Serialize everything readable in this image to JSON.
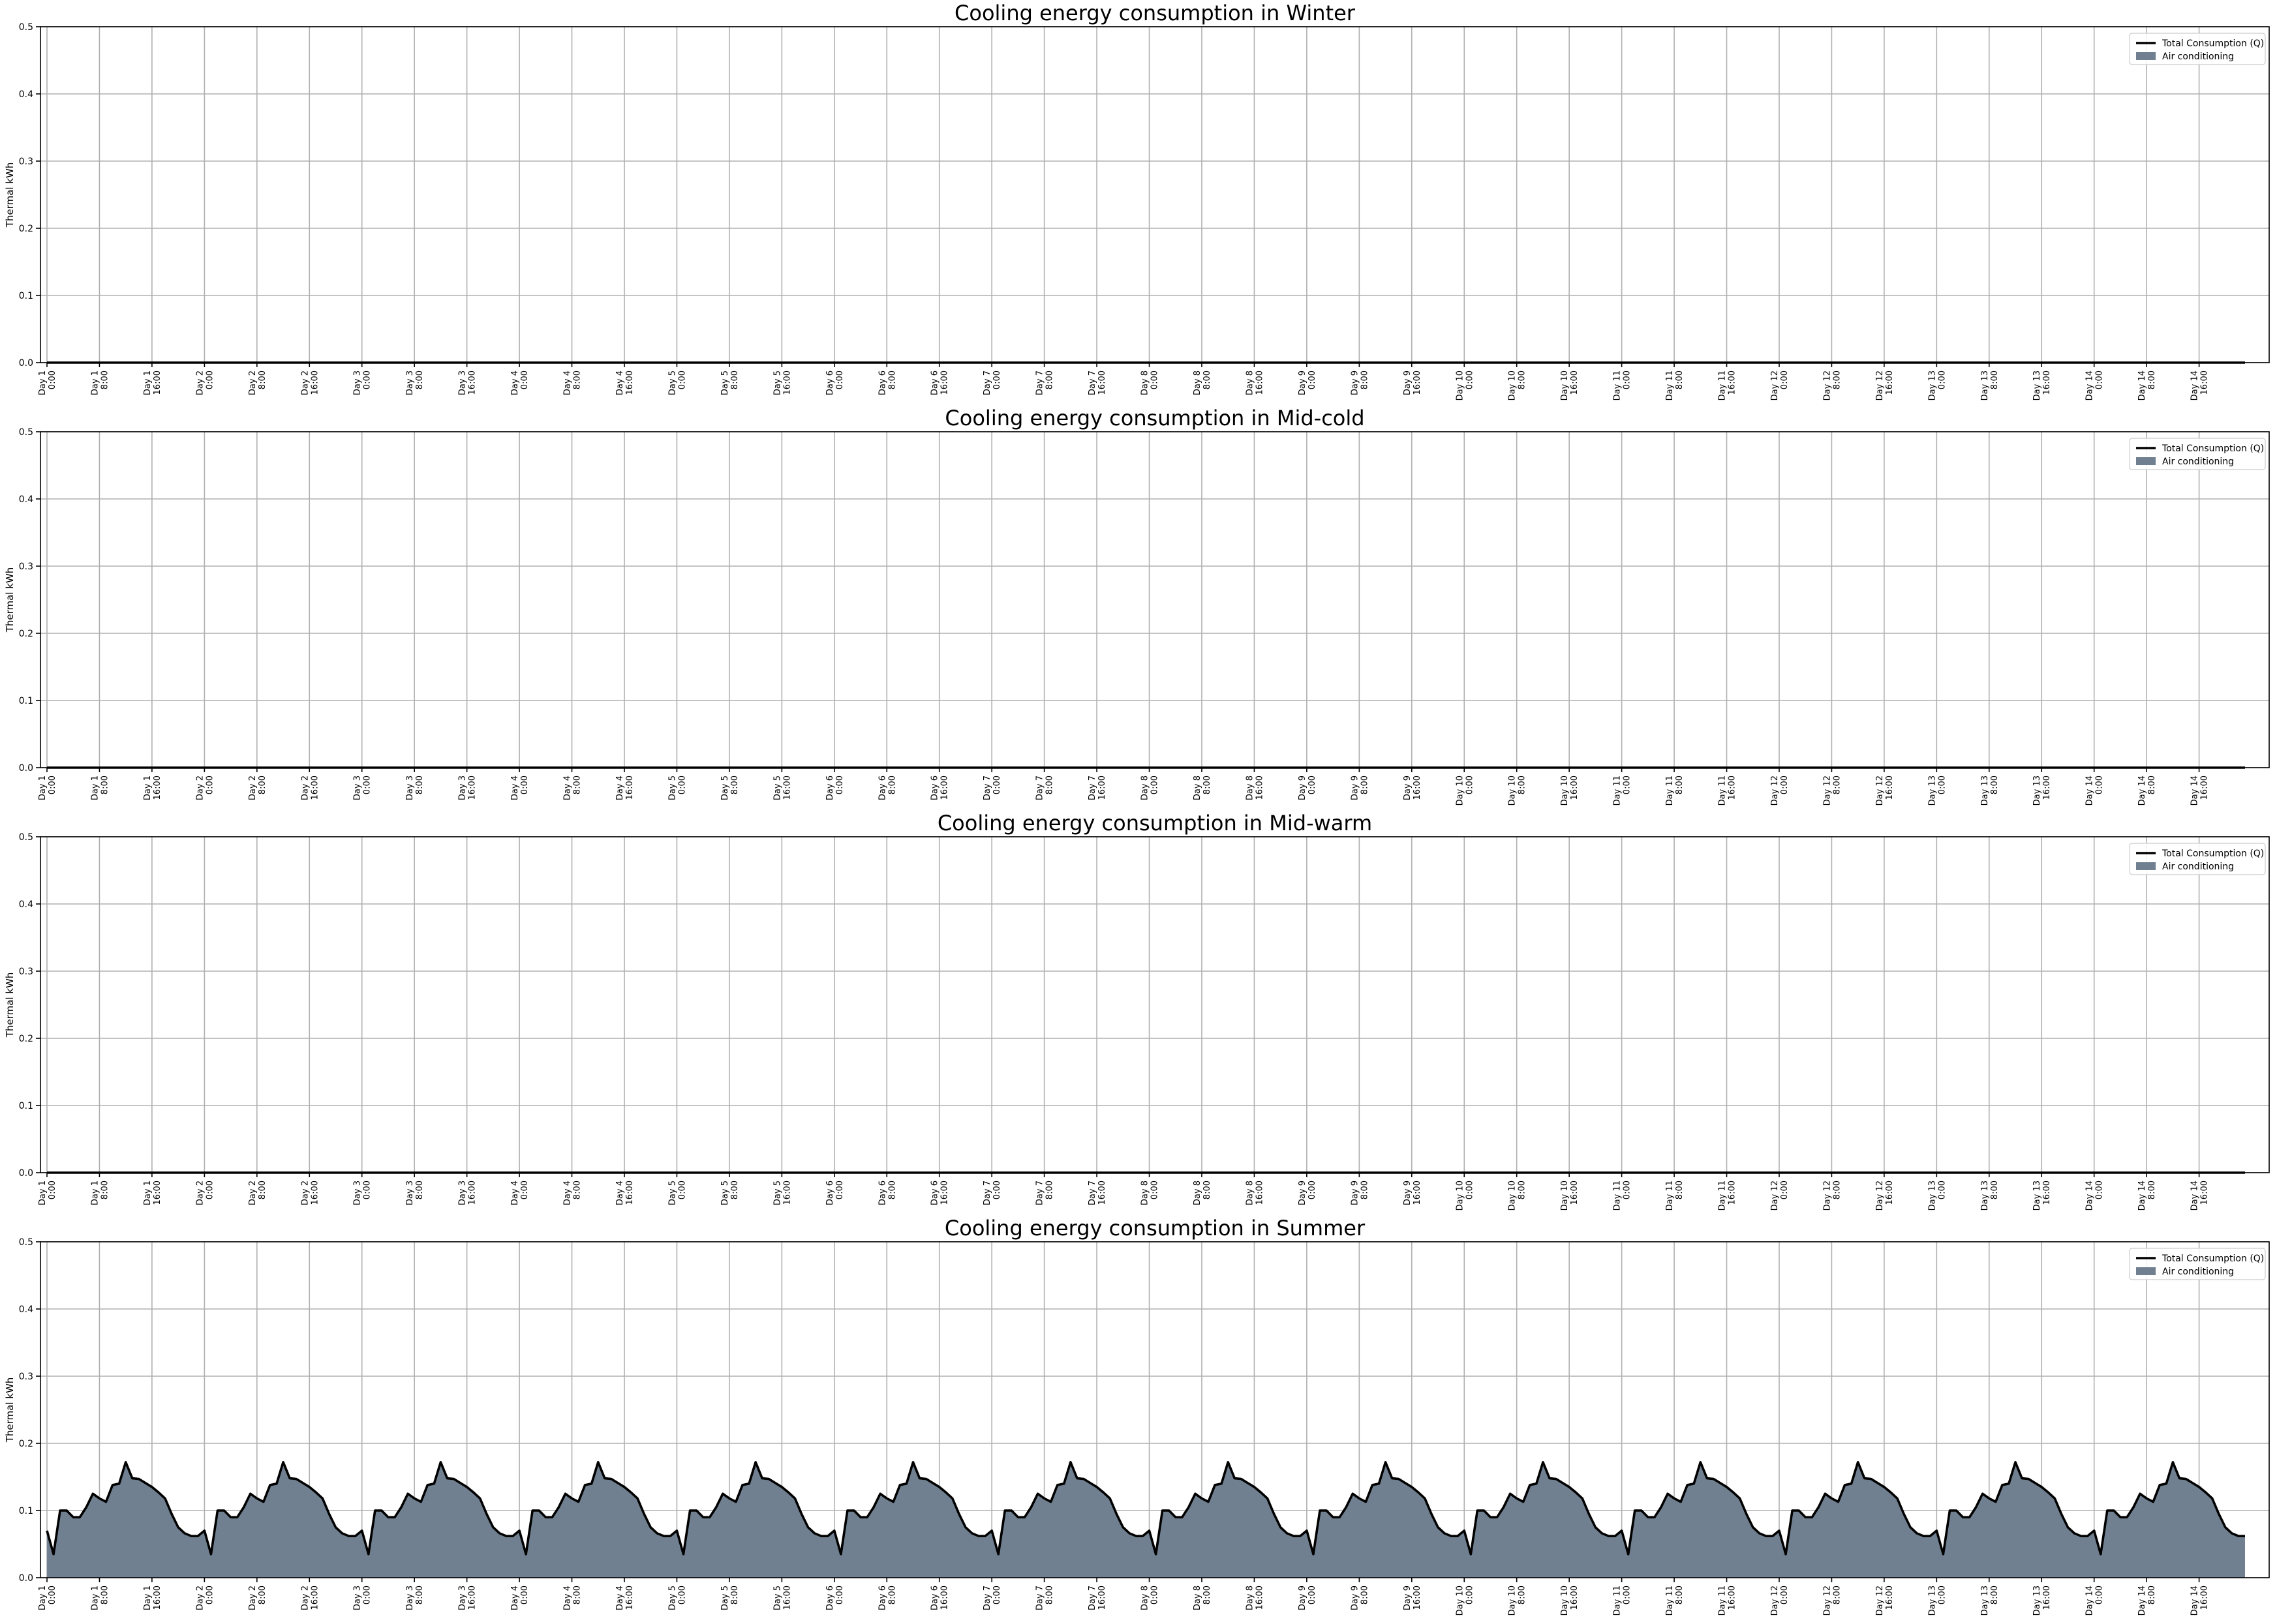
{
  "chart_data": [
    {
      "type": "area",
      "title": "Cooling energy consumption in Winter",
      "ylabel": "Thermal kWh",
      "xlabel": "",
      "ylim": [
        0,
        0.5
      ],
      "yticks": [
        "0.0",
        "0.1",
        "0.2",
        "0.3",
        "0.4",
        "0.5"
      ],
      "grid": true,
      "legend_position": "top-right",
      "series": [
        {
          "name": "Total Consumption (Q)",
          "kind": "line",
          "color": "#000000",
          "profile": "zero"
        },
        {
          "name": "Air conditioning",
          "kind": "area",
          "color": "#708090",
          "profile": "zero"
        }
      ]
    },
    {
      "type": "area",
      "title": "Cooling energy consumption in Mid-cold",
      "ylabel": "Thermal kWh",
      "xlabel": "",
      "ylim": [
        0,
        0.5
      ],
      "yticks": [
        "0.0",
        "0.1",
        "0.2",
        "0.3",
        "0.4",
        "0.5"
      ],
      "grid": true,
      "legend_position": "top-right",
      "series": [
        {
          "name": "Total Consumption (Q)",
          "kind": "line",
          "color": "#000000",
          "profile": "zero"
        },
        {
          "name": "Air conditioning",
          "kind": "area",
          "color": "#708090",
          "profile": "zero"
        }
      ]
    },
    {
      "type": "area",
      "title": "Cooling energy consumption in Mid-warm",
      "ylabel": "Thermal kWh",
      "xlabel": "",
      "ylim": [
        0,
        0.5
      ],
      "yticks": [
        "0.0",
        "0.1",
        "0.2",
        "0.3",
        "0.4",
        "0.5"
      ],
      "grid": true,
      "legend_position": "top-right",
      "series": [
        {
          "name": "Total Consumption (Q)",
          "kind": "line",
          "color": "#000000",
          "profile": "zero"
        },
        {
          "name": "Air conditioning",
          "kind": "area",
          "color": "#708090",
          "profile": "zero"
        }
      ]
    },
    {
      "type": "area",
      "title": "Cooling energy consumption in Summer",
      "ylabel": "Thermal kWh",
      "xlabel": "",
      "ylim": [
        0,
        0.5
      ],
      "yticks": [
        "0.0",
        "0.1",
        "0.2",
        "0.3",
        "0.4",
        "0.5"
      ],
      "grid": true,
      "legend_position": "top-right",
      "series": [
        {
          "name": "Total Consumption (Q)",
          "kind": "line",
          "color": "#000000",
          "profile": "daily"
        },
        {
          "name": "Air conditioning",
          "kind": "area",
          "color": "#708090",
          "profile": "daily"
        }
      ]
    }
  ],
  "x_tick_labels": [
    [
      "Day 1",
      "0:00"
    ],
    [
      "Day 1",
      "8:00"
    ],
    [
      "Day 1",
      "16:00"
    ],
    [
      "Day 2",
      "0:00"
    ],
    [
      "Day 2",
      "8:00"
    ],
    [
      "Day 2",
      "16:00"
    ],
    [
      "Day 3",
      "0:00"
    ],
    [
      "Day 3",
      "8:00"
    ],
    [
      "Day 3",
      "16:00"
    ],
    [
      "Day 4",
      "0:00"
    ],
    [
      "Day 4",
      "8:00"
    ],
    [
      "Day 4",
      "16:00"
    ],
    [
      "Day 5",
      "0:00"
    ],
    [
      "Day 5",
      "8:00"
    ],
    [
      "Day 5",
      "16:00"
    ],
    [
      "Day 6",
      "0:00"
    ],
    [
      "Day 6",
      "8:00"
    ],
    [
      "Day 6",
      "16:00"
    ],
    [
      "Day 7",
      "0:00"
    ],
    [
      "Day 7",
      "8:00"
    ],
    [
      "Day 7",
      "16:00"
    ],
    [
      "Day 8",
      "0:00"
    ],
    [
      "Day 8",
      "8:00"
    ],
    [
      "Day 8",
      "16:00"
    ],
    [
      "Day 9",
      "0:00"
    ],
    [
      "Day 9",
      "8:00"
    ],
    [
      "Day 9",
      "16:00"
    ],
    [
      "Day 10",
      "0:00"
    ],
    [
      "Day 10",
      "8:00"
    ],
    [
      "Day 10",
      "16:00"
    ],
    [
      "Day 11",
      "0:00"
    ],
    [
      "Day 11",
      "8:00"
    ],
    [
      "Day 11",
      "16:00"
    ],
    [
      "Day 12",
      "0:00"
    ],
    [
      "Day 12",
      "8:00"
    ],
    [
      "Day 12",
      "16:00"
    ],
    [
      "Day 13",
      "0:00"
    ],
    [
      "Day 13",
      "8:00"
    ],
    [
      "Day 13",
      "16:00"
    ],
    [
      "Day 14",
      "0:00"
    ],
    [
      "Day 14",
      "8:00"
    ],
    [
      "Day 14",
      "16:00"
    ]
  ],
  "daily_profile": {
    "hour": [
      0,
      1,
      2,
      3,
      4,
      5,
      6,
      7,
      8,
      9,
      10,
      11,
      12,
      13,
      14,
      15,
      16,
      17,
      18,
      19,
      20,
      21,
      22,
      23
    ],
    "value": [
      0.07,
      0.035,
      0.1,
      0.1,
      0.09,
      0.09,
      0.105,
      0.125,
      0.118,
      0.113,
      0.138,
      0.14,
      0.172,
      0.148,
      0.147,
      0.141,
      0.135,
      0.127,
      0.118,
      0.095,
      0.075,
      0.066,
      0.062,
      0.062
    ],
    "days": 14
  }
}
